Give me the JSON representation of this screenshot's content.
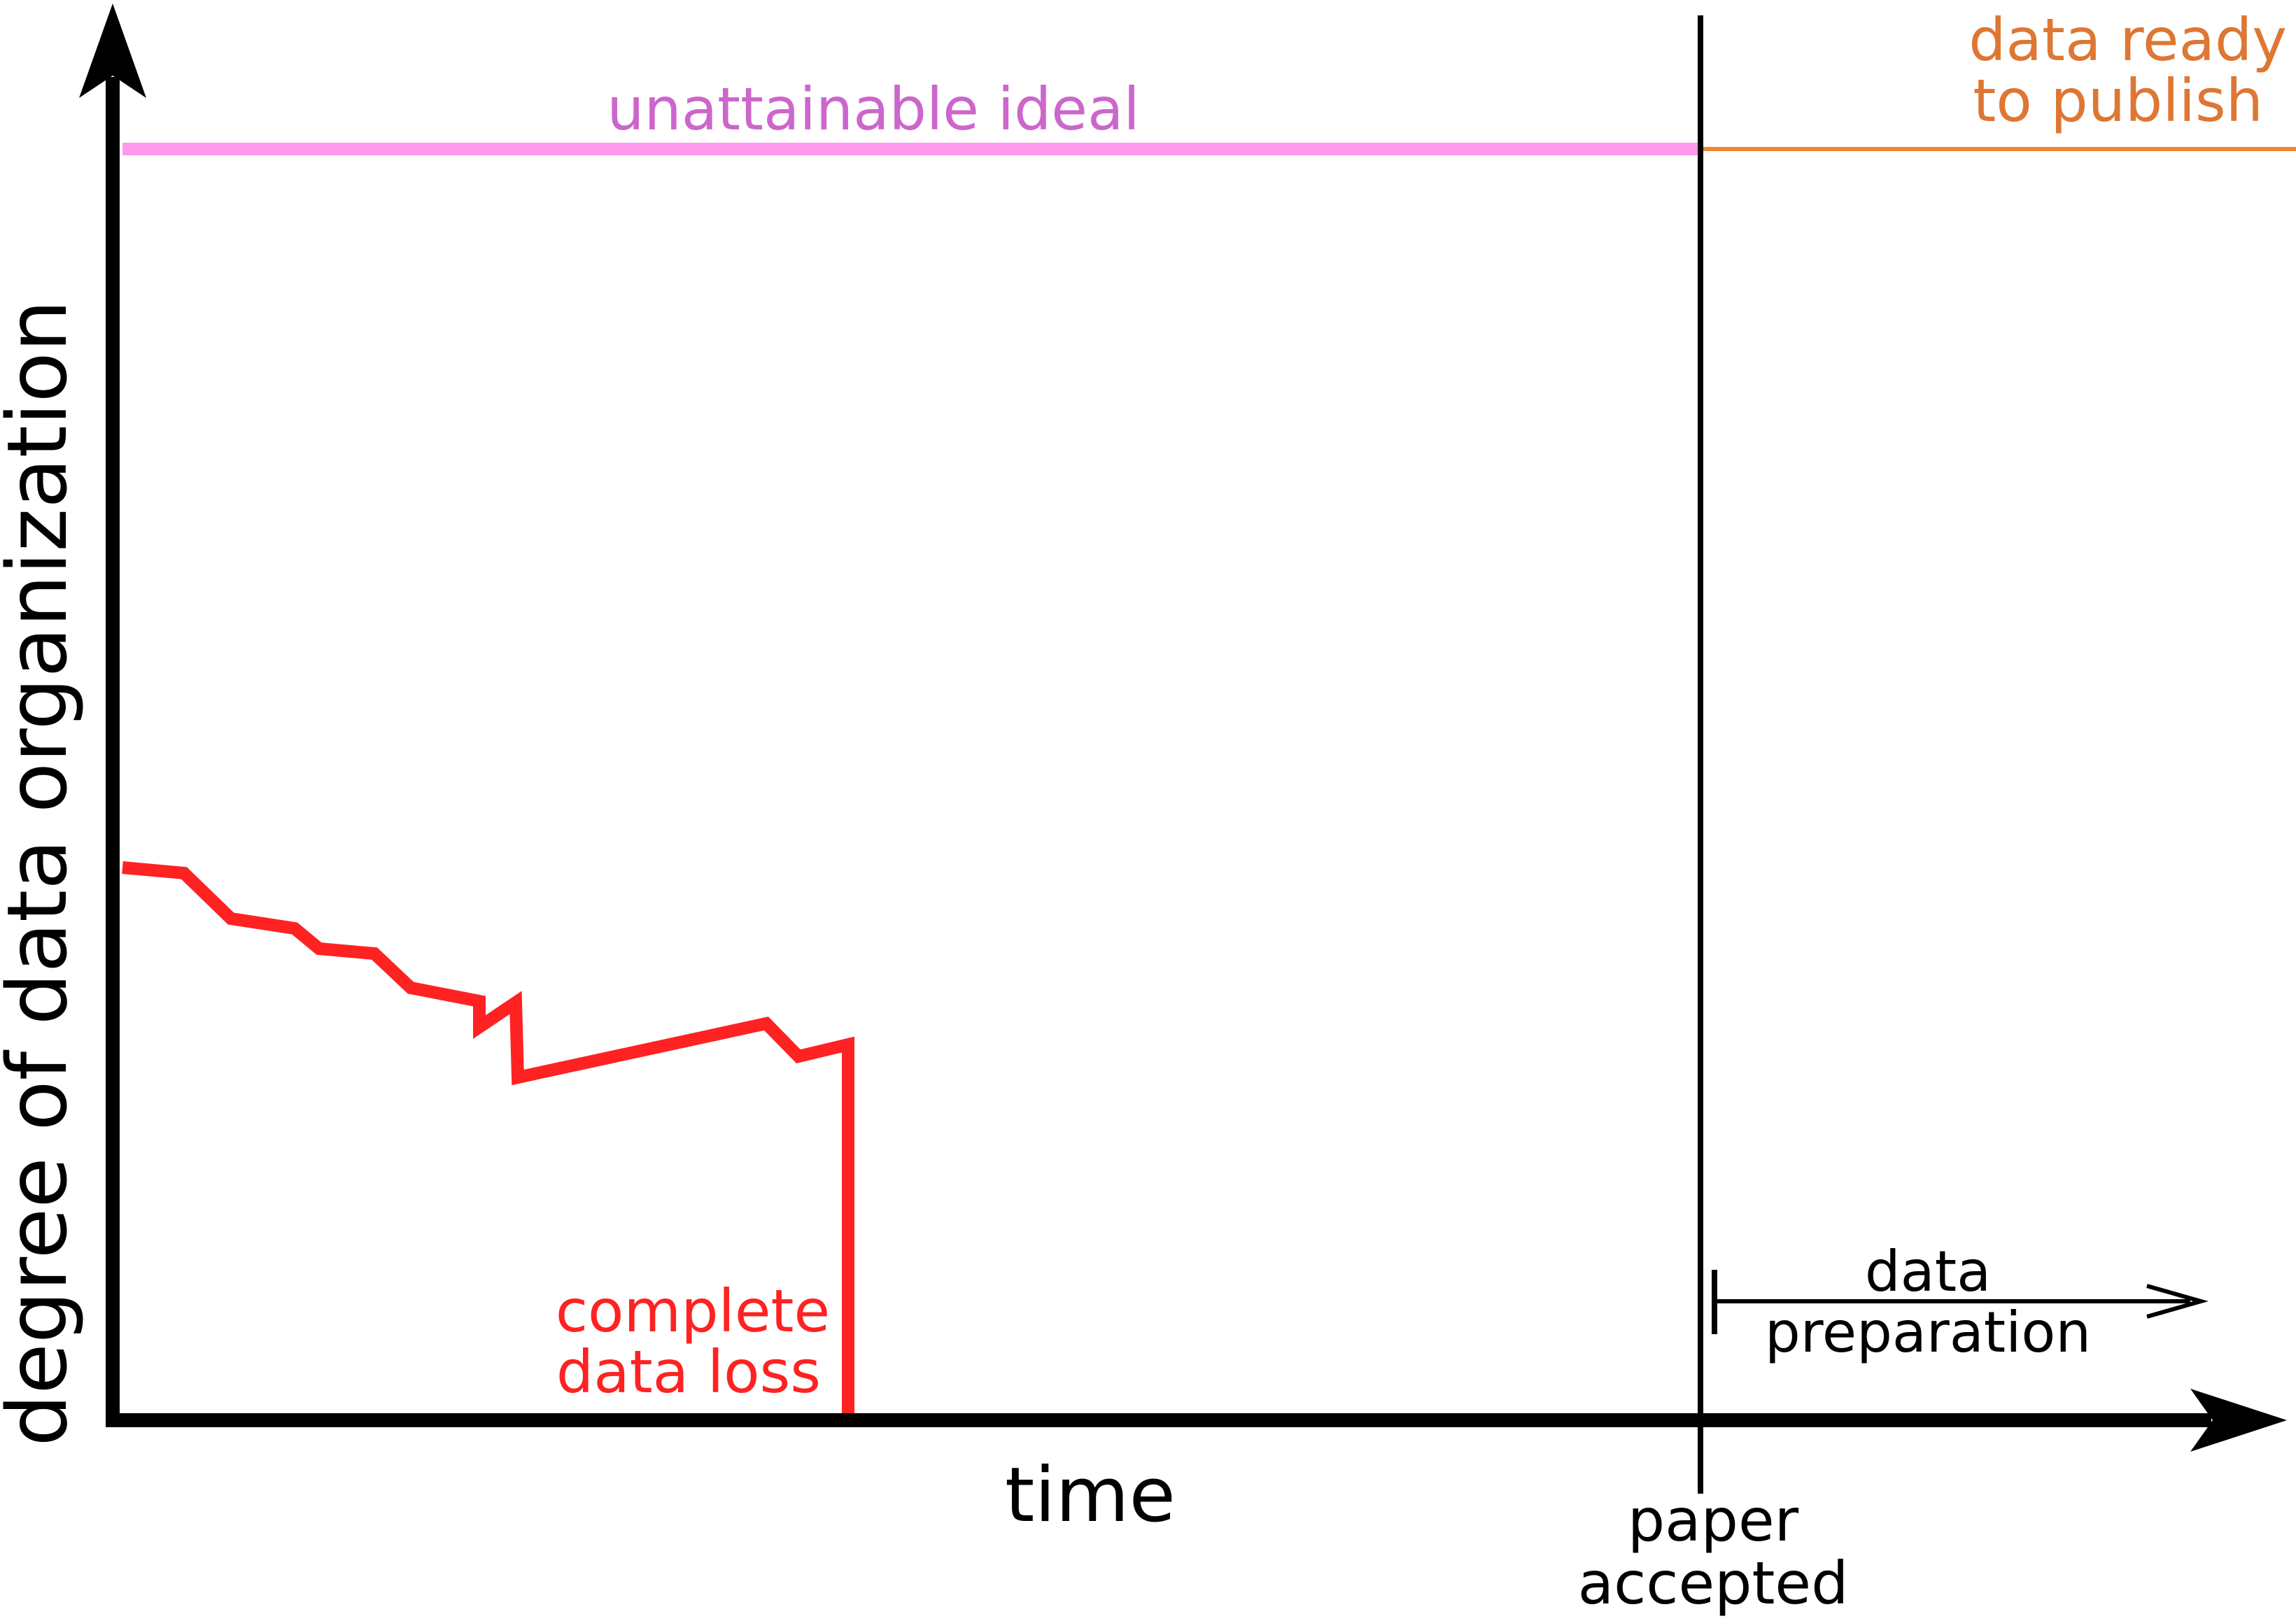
{
  "labels": {
    "y_axis": "degree of data organization",
    "x_axis": "time",
    "ideal": "unattainable ideal",
    "ready_line1": "data ready",
    "ready_line2": "to publish",
    "loss_line1": "complete",
    "loss_line2": "data loss",
    "accepted_line1": "paper",
    "accepted_line2": "accepted",
    "prep_line1": "data",
    "prep_line2": "preparation"
  },
  "colors": {
    "axis": "#000000",
    "ideal": "#ff99ee",
    "ideal_text": "#cc66cc",
    "ready": "#ee8833",
    "ready_text": "#dd7733",
    "loss": "#ff2222",
    "text": "#000000"
  }
}
